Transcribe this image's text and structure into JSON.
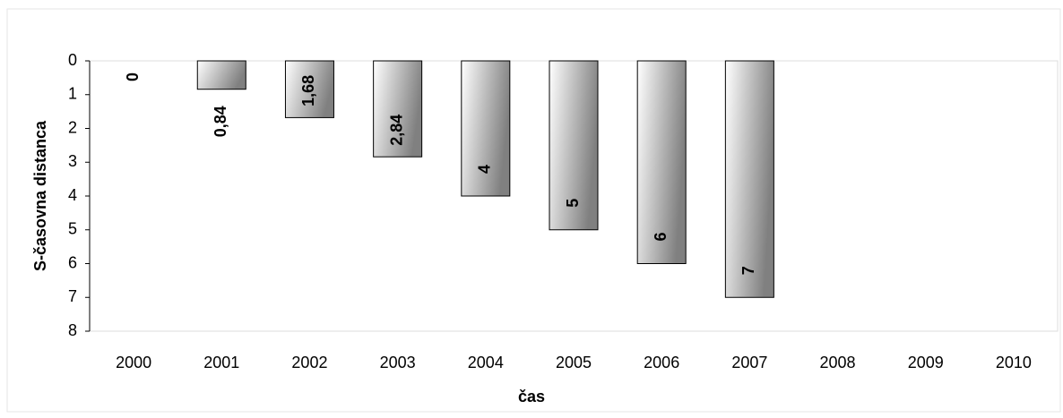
{
  "chart_data": {
    "type": "bar",
    "y_label": "S-časovna distanca",
    "x_label": "čas",
    "categories": [
      "2000",
      "2001",
      "2002",
      "2003",
      "2004",
      "2005",
      "2006",
      "2007",
      "2008",
      "2009",
      "2010"
    ],
    "values": [
      0,
      0.84,
      1.68,
      2.84,
      4,
      5,
      6,
      7,
      null,
      null,
      null
    ],
    "value_labels": [
      "0",
      "0,84",
      "1,68",
      "2,84",
      "4",
      "5",
      "6",
      "7",
      null,
      null,
      null
    ],
    "color": "#808080",
    "ylim": [
      0,
      8
    ],
    "yticks": [
      0,
      1,
      2,
      3,
      4,
      5,
      6,
      7,
      8
    ],
    "y_reversed": true
  }
}
